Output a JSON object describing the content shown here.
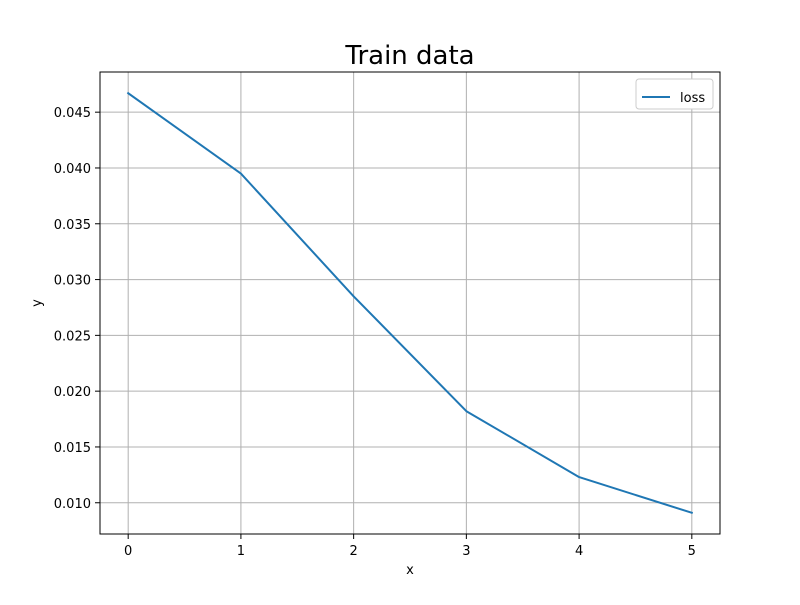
{
  "chart_data": {
    "type": "line",
    "title": "Train data",
    "xlabel": "x",
    "ylabel": "y",
    "x": [
      0,
      1,
      2,
      3,
      4,
      5
    ],
    "xlim": [
      -0.25,
      5.25
    ],
    "ylim": [
      0.0072,
      0.0486
    ],
    "xticks": [
      0,
      1,
      2,
      3,
      4,
      5
    ],
    "xtick_labels": [
      "0",
      "1",
      "2",
      "3",
      "4",
      "5"
    ],
    "yticks": [
      0.01,
      0.015,
      0.02,
      0.025,
      0.03,
      0.035,
      0.04,
      0.045
    ],
    "ytick_labels": [
      "0.010",
      "0.015",
      "0.020",
      "0.025",
      "0.030",
      "0.035",
      "0.040",
      "0.045"
    ],
    "grid": true,
    "legend_position": "top-right",
    "series": [
      {
        "name": "loss",
        "color": "#1f77b4",
        "values": [
          0.0467,
          0.0395,
          0.0285,
          0.0182,
          0.0123,
          0.0091
        ]
      }
    ]
  }
}
